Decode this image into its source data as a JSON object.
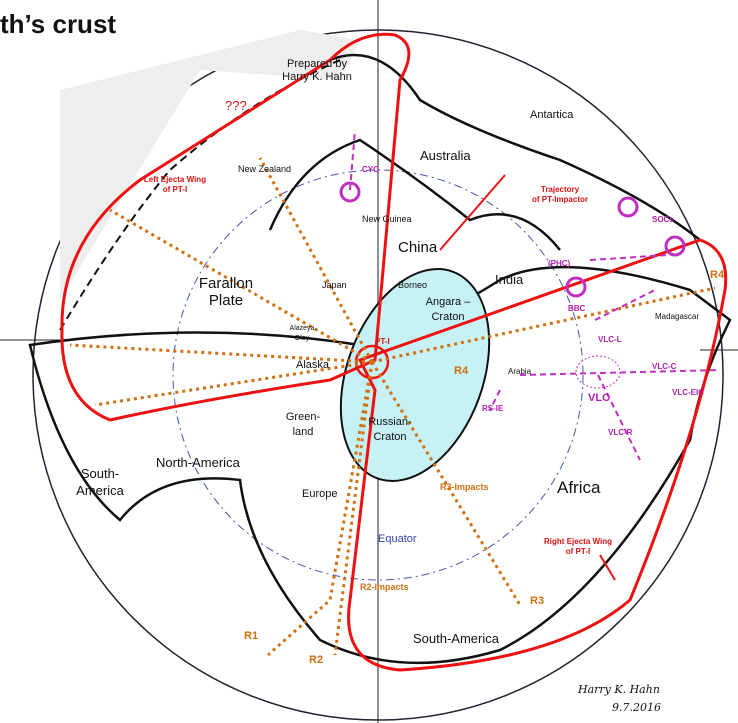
{
  "title": "th’s crust",
  "credit": [
    "Prepared by",
    "Harry K. Hahn"
  ],
  "labels": {
    "unknown": "???",
    "antartica": "Antartica",
    "australia": "Australia",
    "new_zealand": "New Zealand",
    "cyc": "CYC",
    "left_wing": [
      "Left Ejecta Wing",
      "of PT-I"
    ],
    "trajectory": [
      "Trajectory",
      "of PT-Impactor"
    ],
    "new_guinea": "New Guinea",
    "socs": "SOCs",
    "china": "China",
    "phc": "(PHC)",
    "india": "India",
    "r4_right": "R4",
    "farallon": [
      "Farallon",
      "Plate"
    ],
    "japan": "Japan",
    "borneo": "Borneo",
    "angara": [
      "Angara –",
      "Craton"
    ],
    "bbc": "BBC",
    "madagascar": "Madagascar",
    "alazeya": [
      "Alazeya",
      "Oloy"
    ],
    "pt_i": "PT-I",
    "vlc_l": "VLC-L",
    "alaska": "Alaska",
    "r4": "R4",
    "arabia": "Arabia",
    "vlc_c": "VLC-C",
    "vlc": "VLC",
    "vlc_eic": "VLC-EIC",
    "rs_ie": "RS-IE",
    "vlc_r": "VLC-R",
    "greenland": [
      "Green-",
      "land"
    ],
    "russian": [
      "Russian-",
      "Craton"
    ],
    "north_america": "North-America",
    "r3_impacts": "R3-Impacts",
    "africa": "Africa",
    "south_america_left": [
      "South-",
      "America"
    ],
    "europe": "Europe",
    "equator": "Equator",
    "right_wing": [
      "Right Ejecta Wing",
      "of PT-I"
    ],
    "r2_impacts": "R2-Impacts",
    "r3": "R3",
    "r1": "R1",
    "r2": "R2",
    "south_america": "South-America"
  },
  "signature": [
    "Harry K. Hahn",
    "9.7.2016"
  ]
}
